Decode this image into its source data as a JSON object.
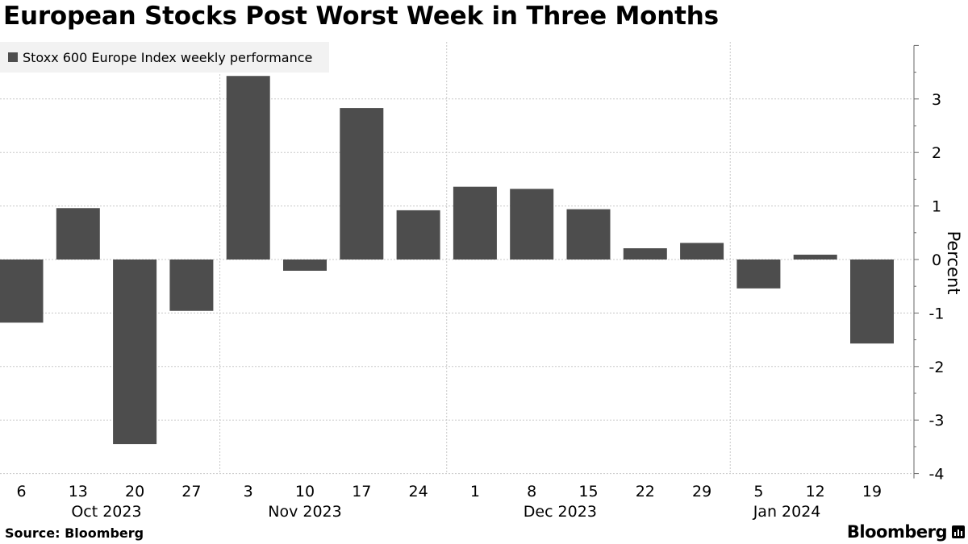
{
  "title": "European Stocks Post Worst Week in Three Months",
  "source": "Source: Bloomberg",
  "brand": "Bloomberg",
  "brand_icon": "bloomberg-chart-icon",
  "colors": {
    "bar": "#4d4d4d",
    "grid": "#c8c8c8",
    "axis": "#666666",
    "legend_bg": "#f2f2f2"
  },
  "chart_data": {
    "type": "bar",
    "legend": "top-left",
    "grid": true,
    "series": [
      {
        "name": "Stoxx 600 Europe Index weekly performance",
        "values": [
          -1.18,
          0.96,
          -3.45,
          -0.96,
          3.43,
          -0.21,
          2.83,
          0.92,
          1.36,
          1.32,
          0.94,
          0.21,
          0.31,
          -0.54,
          0.09,
          -1.57
        ]
      }
    ],
    "categories": [
      "6",
      "13",
      "20",
      "27",
      "3",
      "10",
      "17",
      "24",
      "1",
      "8",
      "15",
      "22",
      "29",
      "5",
      "12",
      "19"
    ],
    "month_labels": [
      {
        "label": "Oct 2023",
        "center_index": 1.5
      },
      {
        "label": "Nov 2023",
        "center_index": 5.0
      },
      {
        "label": "Dec 2023",
        "center_index": 9.5
      },
      {
        "label": "Jan 2024",
        "center_index": 13.5
      }
    ],
    "ylabel": "Percent",
    "ylim": [
      -4,
      4
    ],
    "yticks": [
      -4,
      -3,
      -2,
      -1,
      0,
      1,
      2,
      3
    ]
  }
}
